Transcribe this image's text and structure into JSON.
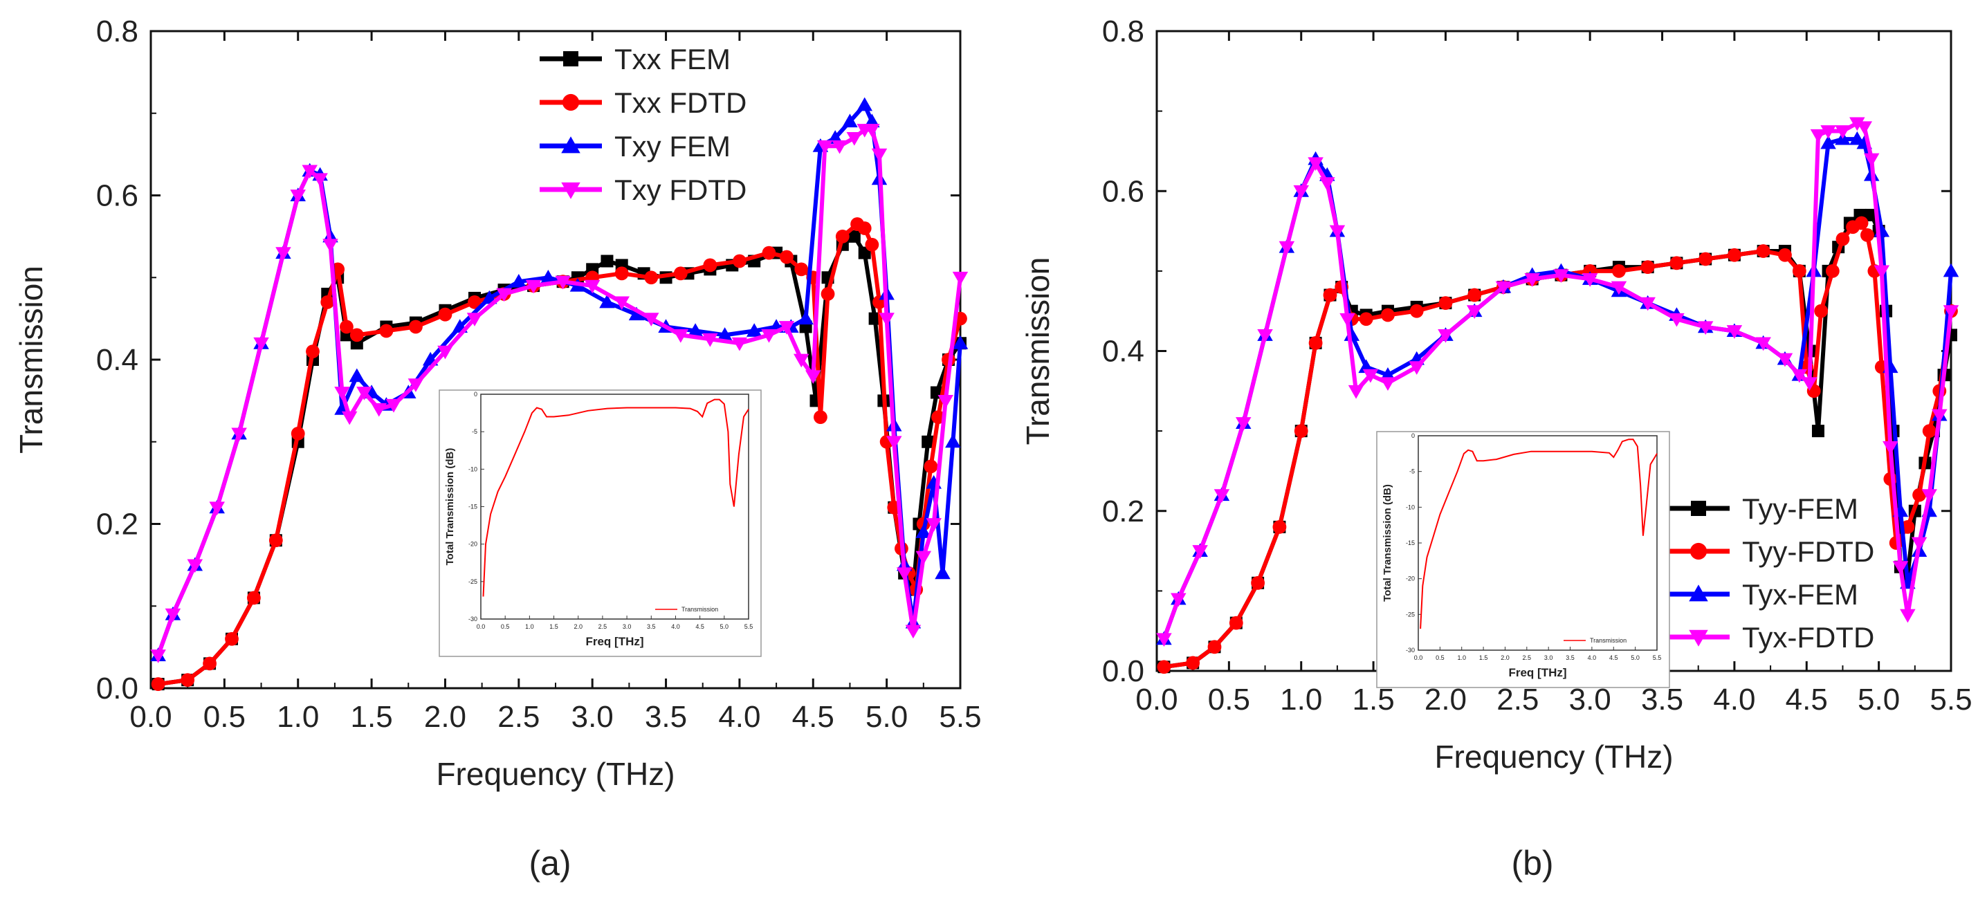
{
  "colors": {
    "fem_black": "#000000",
    "fdtd_red": "#ff0000",
    "fem_blue": "#0000ff",
    "fdtd_magenta": "#ff00ff",
    "inset_line": "#ff0000"
  },
  "chart_data": [
    {
      "type": "line",
      "panel_label": "(a)",
      "xlabel": "Frequency (THz)",
      "ylabel": "Transmission",
      "xlim": [
        0.0,
        5.5
      ],
      "ylim": [
        0.0,
        0.8
      ],
      "xticks": [
        "0.0",
        "0.5",
        "1.0",
        "1.5",
        "2.0",
        "2.5",
        "3.0",
        "3.5",
        "4.0",
        "4.5",
        "5.0",
        "5.5"
      ],
      "yticks": [
        "0.0",
        "0.2",
        "0.4",
        "0.6",
        "0.8"
      ],
      "legend": "top-right",
      "series": [
        {
          "name": "Txx FEM",
          "color": "#000000",
          "marker": "square",
          "x": [
            0.05,
            0.25,
            0.4,
            0.55,
            0.7,
            0.85,
            1.0,
            1.1,
            1.2,
            1.27,
            1.33,
            1.4,
            1.6,
            1.8,
            2.0,
            2.2,
            2.4,
            2.6,
            2.8,
            2.9,
            3.0,
            3.1,
            3.2,
            3.35,
            3.5,
            3.65,
            3.8,
            3.95,
            4.1,
            4.25,
            4.35,
            4.45,
            4.52,
            4.6,
            4.7,
            4.78,
            4.85,
            4.92,
            4.98,
            5.05,
            5.12,
            5.18,
            5.22,
            5.28,
            5.34,
            5.42,
            5.5
          ],
          "y": [
            0.005,
            0.01,
            0.03,
            0.06,
            0.11,
            0.18,
            0.3,
            0.4,
            0.48,
            0.5,
            0.43,
            0.42,
            0.44,
            0.445,
            0.46,
            0.475,
            0.485,
            0.49,
            0.495,
            0.5,
            0.51,
            0.52,
            0.515,
            0.505,
            0.5,
            0.505,
            0.51,
            0.515,
            0.52,
            0.53,
            0.52,
            0.44,
            0.35,
            0.5,
            0.54,
            0.55,
            0.53,
            0.45,
            0.35,
            0.22,
            0.14,
            0.12,
            0.2,
            0.3,
            0.36,
            0.4,
            0.42
          ]
        },
        {
          "name": "Txx FDTD",
          "color": "#ff0000",
          "marker": "circle",
          "x": [
            0.05,
            0.25,
            0.4,
            0.55,
            0.7,
            0.85,
            1.0,
            1.1,
            1.2,
            1.27,
            1.33,
            1.4,
            1.6,
            1.8,
            2.0,
            2.2,
            2.4,
            2.6,
            2.8,
            3.0,
            3.2,
            3.4,
            3.6,
            3.8,
            4.0,
            4.2,
            4.32,
            4.42,
            4.5,
            4.55,
            4.6,
            4.7,
            4.8,
            4.85,
            4.9,
            4.95,
            5.0,
            5.05,
            5.1,
            5.15,
            5.2,
            5.25,
            5.3,
            5.35,
            5.42,
            5.5
          ],
          "y": [
            0.005,
            0.01,
            0.03,
            0.06,
            0.11,
            0.18,
            0.31,
            0.41,
            0.47,
            0.51,
            0.44,
            0.43,
            0.435,
            0.44,
            0.455,
            0.47,
            0.48,
            0.49,
            0.495,
            0.5,
            0.505,
            0.5,
            0.505,
            0.515,
            0.52,
            0.53,
            0.525,
            0.51,
            0.5,
            0.33,
            0.48,
            0.55,
            0.565,
            0.56,
            0.54,
            0.47,
            0.3,
            0.22,
            0.17,
            0.14,
            0.12,
            0.2,
            0.27,
            0.33,
            0.4,
            0.45
          ]
        },
        {
          "name": "Txy FEM",
          "color": "#0000ff",
          "marker": "triangle-up",
          "x": [
            0.05,
            0.15,
            0.3,
            0.45,
            0.6,
            0.75,
            0.9,
            1.0,
            1.08,
            1.15,
            1.22,
            1.3,
            1.4,
            1.5,
            1.6,
            1.75,
            1.9,
            2.1,
            2.3,
            2.5,
            2.7,
            2.9,
            3.1,
            3.3,
            3.5,
            3.7,
            3.9,
            4.1,
            4.25,
            4.35,
            4.45,
            4.55,
            4.65,
            4.75,
            4.85,
            4.9,
            4.95,
            5.0,
            5.05,
            5.12,
            5.18,
            5.25,
            5.32,
            5.38,
            5.45,
            5.5
          ],
          "y": [
            0.04,
            0.09,
            0.15,
            0.22,
            0.31,
            0.42,
            0.53,
            0.6,
            0.63,
            0.625,
            0.55,
            0.34,
            0.38,
            0.36,
            0.345,
            0.36,
            0.4,
            0.44,
            0.475,
            0.495,
            0.5,
            0.49,
            0.47,
            0.455,
            0.44,
            0.435,
            0.43,
            0.435,
            0.44,
            0.44,
            0.45,
            0.66,
            0.67,
            0.69,
            0.71,
            0.69,
            0.62,
            0.48,
            0.32,
            0.15,
            0.08,
            0.19,
            0.25,
            0.14,
            0.3,
            0.42
          ]
        },
        {
          "name": "Txy FDTD",
          "color": "#ff00ff",
          "marker": "triangle-down",
          "x": [
            0.05,
            0.15,
            0.3,
            0.45,
            0.6,
            0.75,
            0.9,
            1.0,
            1.08,
            1.15,
            1.22,
            1.3,
            1.35,
            1.45,
            1.55,
            1.65,
            1.8,
            2.0,
            2.2,
            2.4,
            2.6,
            2.8,
            3.0,
            3.2,
            3.4,
            3.6,
            3.8,
            4.0,
            4.2,
            4.32,
            4.42,
            4.5,
            4.58,
            4.68,
            4.78,
            4.85,
            4.9,
            4.95,
            5.0,
            5.05,
            5.12,
            5.18,
            5.25,
            5.32,
            5.4,
            5.5
          ],
          "y": [
            0.04,
            0.09,
            0.15,
            0.22,
            0.31,
            0.42,
            0.53,
            0.6,
            0.63,
            0.62,
            0.54,
            0.36,
            0.33,
            0.36,
            0.34,
            0.345,
            0.37,
            0.41,
            0.45,
            0.48,
            0.49,
            0.495,
            0.49,
            0.47,
            0.45,
            0.43,
            0.425,
            0.42,
            0.43,
            0.44,
            0.4,
            0.38,
            0.66,
            0.66,
            0.67,
            0.68,
            0.68,
            0.65,
            0.45,
            0.3,
            0.14,
            0.07,
            0.16,
            0.2,
            0.35,
            0.5
          ]
        }
      ],
      "inset": {
        "type": "line",
        "xlabel": "Freq [THz]",
        "ylabel": "Total Transmission (dB)",
        "legend": "Transmission",
        "xlim": [
          0.0,
          5.5
        ],
        "ylim": [
          -30,
          0
        ],
        "xticks": [
          "0.0",
          "0.5",
          "1.0",
          "1.5",
          "2.0",
          "2.5",
          "3.0",
          "3.5",
          "4.0",
          "4.5",
          "5.0",
          "5.5"
        ],
        "yticks": [
          "0",
          "-5",
          "-10",
          "-15",
          "-20",
          "-25",
          "-30"
        ],
        "x": [
          0.05,
          0.1,
          0.2,
          0.35,
          0.5,
          0.7,
          0.9,
          1.05,
          1.15,
          1.25,
          1.35,
          1.5,
          1.8,
          2.2,
          2.6,
          3.0,
          3.5,
          4.0,
          4.3,
          4.45,
          4.55,
          4.65,
          4.8,
          4.9,
          5.0,
          5.08,
          5.12,
          5.2,
          5.3,
          5.4,
          5.5
        ],
        "y": [
          -27,
          -20,
          -16,
          -13,
          -11,
          -8,
          -5,
          -2.5,
          -1.8,
          -2,
          -3,
          -3,
          -2.8,
          -2.2,
          -1.9,
          -1.8,
          -1.8,
          -1.8,
          -1.9,
          -2.3,
          -3,
          -1.2,
          -0.7,
          -0.7,
          -1.3,
          -5,
          -12,
          -15,
          -8,
          -3,
          -2
        ]
      }
    },
    {
      "type": "line",
      "panel_label": "(b)",
      "xlabel": "Frequency (THz)",
      "ylabel": "Transmission",
      "xlim": [
        0.0,
        5.5
      ],
      "ylim": [
        0.0,
        0.8
      ],
      "xticks": [
        "0.0",
        "0.5",
        "1.0",
        "1.5",
        "2.0",
        "2.5",
        "3.0",
        "3.5",
        "4.0",
        "4.5",
        "5.0",
        "5.5"
      ],
      "yticks": [
        "0.0",
        "0.2",
        "0.4",
        "0.6",
        "0.8"
      ],
      "legend": "bottom-right",
      "series": [
        {
          "name": "Tyy-FEM",
          "color": "#000000",
          "marker": "square",
          "x": [
            0.05,
            0.25,
            0.4,
            0.55,
            0.7,
            0.85,
            1.0,
            1.1,
            1.2,
            1.28,
            1.35,
            1.45,
            1.6,
            1.8,
            2.0,
            2.2,
            2.4,
            2.6,
            2.8,
            3.0,
            3.2,
            3.4,
            3.6,
            3.8,
            4.0,
            4.2,
            4.35,
            4.45,
            4.52,
            4.58,
            4.65,
            4.72,
            4.8,
            4.87,
            4.95,
            5.0,
            5.05,
            5.1,
            5.15,
            5.2,
            5.25,
            5.32,
            5.38,
            5.45,
            5.5
          ],
          "y": [
            0.005,
            0.01,
            0.03,
            0.06,
            0.11,
            0.18,
            0.3,
            0.41,
            0.47,
            0.48,
            0.45,
            0.445,
            0.45,
            0.455,
            0.46,
            0.47,
            0.48,
            0.49,
            0.495,
            0.5,
            0.505,
            0.505,
            0.51,
            0.515,
            0.52,
            0.525,
            0.525,
            0.5,
            0.4,
            0.3,
            0.5,
            0.53,
            0.56,
            0.57,
            0.57,
            0.55,
            0.45,
            0.3,
            0.13,
            0.12,
            0.2,
            0.26,
            0.3,
            0.37,
            0.42
          ]
        },
        {
          "name": "Tyy-FDTD",
          "color": "#ff0000",
          "marker": "circle",
          "x": [
            0.05,
            0.25,
            0.4,
            0.55,
            0.7,
            0.85,
            1.0,
            1.1,
            1.2,
            1.28,
            1.35,
            1.45,
            1.6,
            1.8,
            2.0,
            2.2,
            2.4,
            2.6,
            2.8,
            3.0,
            3.2,
            3.4,
            3.6,
            3.8,
            4.0,
            4.2,
            4.35,
            4.45,
            4.5,
            4.55,
            4.6,
            4.68,
            4.75,
            4.82,
            4.88,
            4.92,
            4.97,
            5.02,
            5.08,
            5.12,
            5.2,
            5.28,
            5.35,
            5.42,
            5.5
          ],
          "y": [
            0.005,
            0.01,
            0.03,
            0.06,
            0.11,
            0.18,
            0.3,
            0.41,
            0.47,
            0.48,
            0.44,
            0.44,
            0.445,
            0.45,
            0.46,
            0.47,
            0.48,
            0.49,
            0.495,
            0.5,
            0.5,
            0.505,
            0.51,
            0.515,
            0.52,
            0.525,
            0.52,
            0.5,
            0.38,
            0.35,
            0.45,
            0.5,
            0.54,
            0.555,
            0.56,
            0.545,
            0.5,
            0.38,
            0.24,
            0.16,
            0.18,
            0.22,
            0.3,
            0.35,
            0.45
          ]
        },
        {
          "name": "Tyx-FEM",
          "color": "#0000ff",
          "marker": "triangle-up",
          "x": [
            0.05,
            0.15,
            0.3,
            0.45,
            0.6,
            0.75,
            0.9,
            1.0,
            1.1,
            1.18,
            1.25,
            1.35,
            1.45,
            1.6,
            1.8,
            2.0,
            2.2,
            2.4,
            2.6,
            2.8,
            3.0,
            3.2,
            3.4,
            3.6,
            3.8,
            4.0,
            4.2,
            4.35,
            4.45,
            4.55,
            4.65,
            4.75,
            4.85,
            4.9,
            4.95,
            5.02,
            5.08,
            5.15,
            5.2,
            5.28,
            5.35,
            5.42,
            5.5
          ],
          "y": [
            0.04,
            0.09,
            0.15,
            0.22,
            0.31,
            0.42,
            0.53,
            0.6,
            0.64,
            0.62,
            0.55,
            0.42,
            0.38,
            0.37,
            0.39,
            0.42,
            0.45,
            0.48,
            0.495,
            0.5,
            0.49,
            0.475,
            0.46,
            0.445,
            0.43,
            0.425,
            0.41,
            0.39,
            0.37,
            0.5,
            0.66,
            0.665,
            0.665,
            0.66,
            0.62,
            0.55,
            0.38,
            0.2,
            0.11,
            0.15,
            0.2,
            0.32,
            0.5
          ]
        },
        {
          "name": "Tyx-FDTD",
          "color": "#ff00ff",
          "marker": "triangle-down",
          "x": [
            0.05,
            0.15,
            0.3,
            0.45,
            0.6,
            0.75,
            0.9,
            1.0,
            1.1,
            1.18,
            1.25,
            1.32,
            1.38,
            1.48,
            1.6,
            1.8,
            2.0,
            2.2,
            2.4,
            2.6,
            2.8,
            3.0,
            3.2,
            3.4,
            3.6,
            3.8,
            4.0,
            4.2,
            4.35,
            4.45,
            4.52,
            4.58,
            4.65,
            4.75,
            4.85,
            4.9,
            4.95,
            5.02,
            5.08,
            5.15,
            5.2,
            5.28,
            5.35,
            5.42,
            5.5
          ],
          "y": [
            0.04,
            0.09,
            0.15,
            0.22,
            0.31,
            0.42,
            0.53,
            0.6,
            0.635,
            0.61,
            0.55,
            0.44,
            0.35,
            0.37,
            0.36,
            0.38,
            0.42,
            0.45,
            0.48,
            0.49,
            0.495,
            0.49,
            0.48,
            0.46,
            0.44,
            0.43,
            0.425,
            0.41,
            0.39,
            0.37,
            0.36,
            0.67,
            0.675,
            0.675,
            0.685,
            0.68,
            0.64,
            0.5,
            0.28,
            0.13,
            0.07,
            0.16,
            0.22,
            0.32,
            0.45
          ]
        }
      ],
      "inset": {
        "type": "line",
        "xlabel": "Freq [THz]",
        "ylabel": "Total Transmission (dB)",
        "legend": "Transmission",
        "xlim": [
          0.0,
          5.5
        ],
        "ylim": [
          -30,
          0
        ],
        "xticks": [
          "0.0",
          "0.5",
          "1.0",
          "1.5",
          "2.0",
          "2.5",
          "3.0",
          "3.5",
          "4.0",
          "4.5",
          "5.0",
          "5.5"
        ],
        "yticks": [
          "0",
          "-5",
          "-10",
          "-15",
          "-20",
          "-25",
          "-30"
        ],
        "x": [
          0.05,
          0.1,
          0.2,
          0.35,
          0.5,
          0.7,
          0.9,
          1.05,
          1.15,
          1.25,
          1.35,
          1.5,
          1.8,
          2.2,
          2.6,
          3.0,
          3.5,
          4.0,
          4.4,
          4.5,
          4.6,
          4.7,
          4.85,
          4.95,
          5.05,
          5.12,
          5.18,
          5.25,
          5.35,
          5.45,
          5.5
        ],
        "y": [
          -27,
          -21,
          -17,
          -14,
          -11,
          -8,
          -5,
          -2.5,
          -2,
          -2.2,
          -3.5,
          -3.5,
          -3.3,
          -2.6,
          -2.2,
          -2.2,
          -2.2,
          -2.2,
          -2.4,
          -3,
          -2,
          -0.8,
          -0.5,
          -0.5,
          -1.5,
          -7,
          -14,
          -10,
          -4,
          -3,
          -2.5
        ]
      }
    }
  ]
}
